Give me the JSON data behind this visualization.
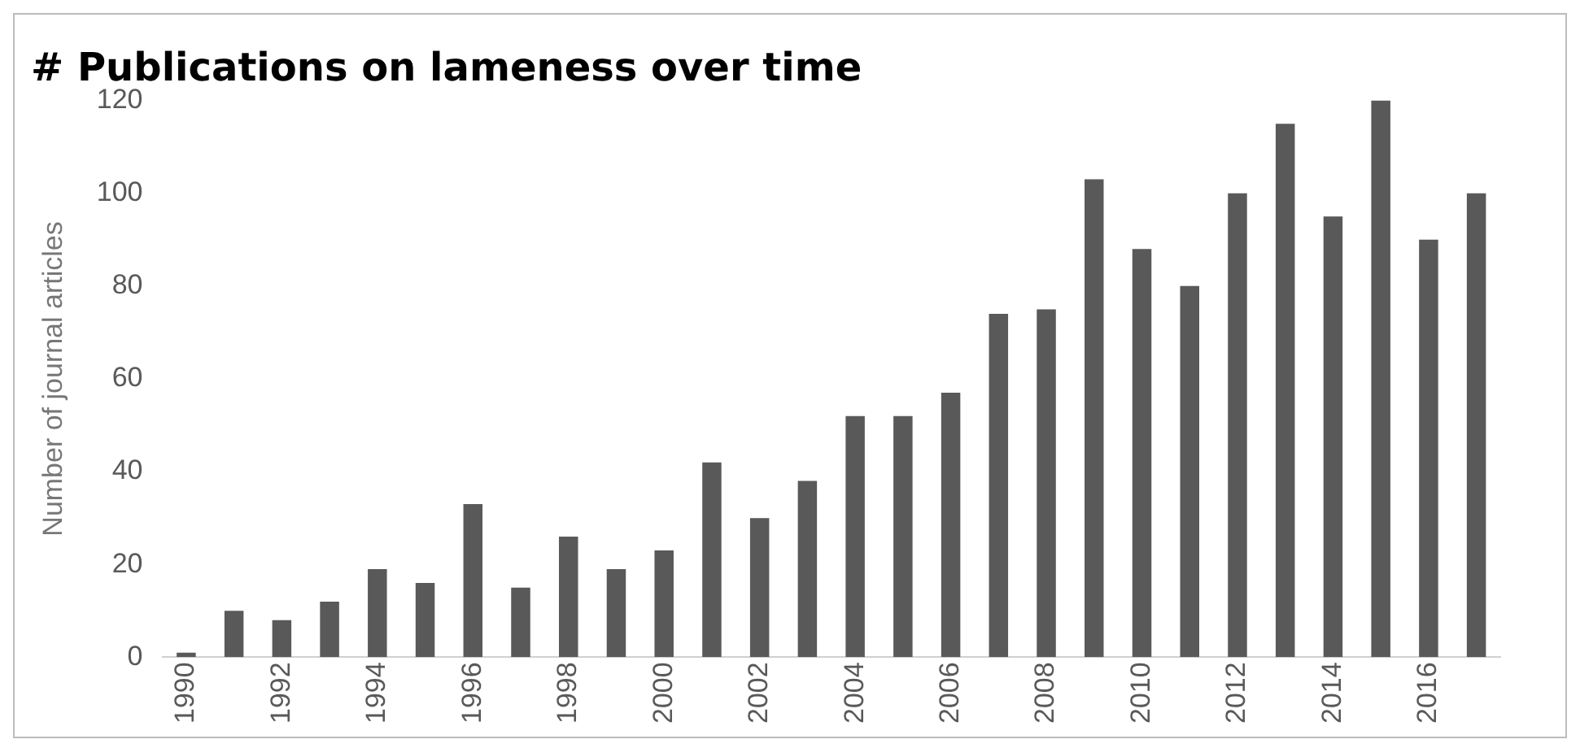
{
  "chart_data": {
    "type": "bar",
    "title": "# Publications on lameness over time",
    "ylabel": "Number of journal articles",
    "categories": [
      "1990",
      null,
      "1992",
      null,
      "1994",
      null,
      "1996",
      null,
      "1998",
      null,
      "2000",
      null,
      "2002",
      null,
      "2004",
      null,
      "2006",
      null,
      "2008",
      null,
      "2010",
      null,
      "2012",
      null,
      "2014",
      null,
      "2016",
      null
    ],
    "values": [
      1,
      10,
      8,
      12,
      19,
      16,
      33,
      15,
      26,
      19,
      23,
      42,
      30,
      38,
      52,
      52,
      57,
      74,
      75,
      103,
      88,
      80,
      100,
      115,
      95,
      120,
      90,
      100
    ],
    "color": "#595959",
    "ylim": [
      0,
      120
    ],
    "yticks": [
      0,
      20,
      40,
      60,
      80,
      100,
      120
    ],
    "grid": false,
    "legend": false
  }
}
